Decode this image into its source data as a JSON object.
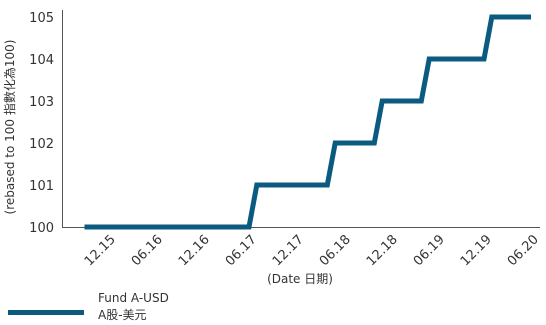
{
  "chart_data": {
    "type": "line",
    "line_shape": "step",
    "title": "",
    "xlabel": "(Date 日期)",
    "ylabel": "(rebased to 100 指數化為100)",
    "categories": [
      "12.15",
      "06.16",
      "12.16",
      "06.17",
      "12.17",
      "06.18",
      "12.18",
      "06.19",
      "12.19",
      "06.20"
    ],
    "ylim": [
      100,
      105
    ],
    "yticks": [
      100,
      101,
      102,
      103,
      104,
      105
    ],
    "grid": false,
    "legend_position": "bottom-left",
    "series": [
      {
        "name": "Fund A-USD A股-美元",
        "name_lines": [
          "Fund A-USD",
          "A股-美元"
        ],
        "color": "#0b5a80",
        "points": [
          {
            "x": "2015-09",
            "y": 100
          },
          {
            "x": "2017-06",
            "y": 100
          },
          {
            "x": "2017-07",
            "y": 101
          },
          {
            "x": "2018-04",
            "y": 101
          },
          {
            "x": "2018-05",
            "y": 102
          },
          {
            "x": "2018-10",
            "y": 102
          },
          {
            "x": "2018-11",
            "y": 103
          },
          {
            "x": "2019-04",
            "y": 103
          },
          {
            "x": "2019-05",
            "y": 104
          },
          {
            "x": "2019-12",
            "y": 104
          },
          {
            "x": "2020-01",
            "y": 105
          },
          {
            "x": "2020-06",
            "y": 105
          }
        ]
      }
    ]
  }
}
